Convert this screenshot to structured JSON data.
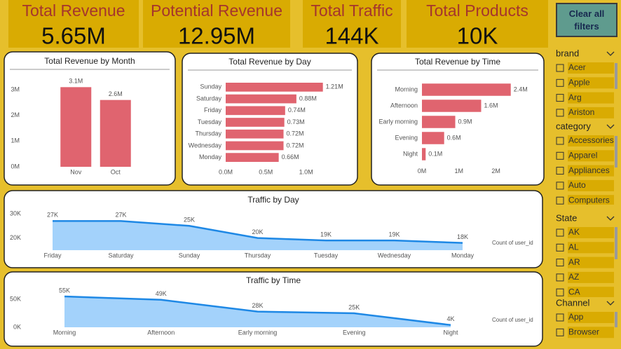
{
  "kpis": [
    {
      "title": "Total Revenue",
      "value": "5.65M"
    },
    {
      "title": "Potential Revenue",
      "value": "12.95M"
    },
    {
      "title": "Total Traffic",
      "value": "144K"
    },
    {
      "title": "Total Products",
      "value": "10K"
    }
  ],
  "button": "Clear all filters",
  "chart_data": [
    {
      "type": "bar",
      "title": "Total Revenue by Month",
      "categories": [
        "Nov",
        "Oct"
      ],
      "values": [
        3100000,
        2600000
      ],
      "value_labels": [
        "3.1M",
        "2.6M"
      ],
      "color": "#e0646f",
      "ylim": [
        0,
        3300000
      ],
      "yticks": [
        {
          "value": 0,
          "label": "0M"
        },
        {
          "value": 1000000,
          "label": "1M"
        },
        {
          "value": 2000000,
          "label": "2M"
        },
        {
          "value": 3000000,
          "label": "3M"
        }
      ]
    },
    {
      "type": "hbar",
      "title": "Total Revenue by Day",
      "categories": [
        "Sunday",
        "Saturday",
        "Friday",
        "Tuesday",
        "Thursday",
        "Wednesday",
        "Monday"
      ],
      "values": [
        1210000,
        880000,
        740000,
        730000,
        720000,
        720000,
        660000
      ],
      "value_labels": [
        "1.21M",
        "0.88M",
        "0.74M",
        "0.73M",
        "0.72M",
        "0.72M",
        "0.66M"
      ],
      "color": "#e0646f",
      "xlim": [
        0,
        1300000
      ],
      "xticks": [
        {
          "value": 0,
          "label": "0.0M"
        },
        {
          "value": 500000,
          "label": "0.5M"
        },
        {
          "value": 1000000,
          "label": "1.0M"
        }
      ]
    },
    {
      "type": "hbar",
      "title": "Total Revenue by Time",
      "categories": [
        "Morning",
        "Afternoon",
        "Early morning",
        "Evening",
        "Night"
      ],
      "values": [
        2400000,
        1600000,
        900000,
        600000,
        100000
      ],
      "value_labels": [
        "2.4M",
        "1.6M",
        "0.9M",
        "0.6M",
        "0.1M"
      ],
      "color": "#e0646f",
      "xlim": [
        0,
        2500000
      ],
      "xticks": [
        {
          "value": 0,
          "label": "0M"
        },
        {
          "value": 1000000,
          "label": "1M"
        },
        {
          "value": 2000000,
          "label": "2M"
        }
      ]
    },
    {
      "type": "area",
      "title": "Traffic by Day",
      "categories": [
        "Friday",
        "Saturday",
        "Sunday",
        "Thursday",
        "Tuesday",
        "Wednesday",
        "Monday"
      ],
      "series": [
        {
          "name": "Count of user_id",
          "color": "#1e88e5",
          "fill": "#a3d2fb",
          "values": [
            27000,
            27000,
            25000,
            20000,
            19000,
            19000,
            18000
          ],
          "value_labels": [
            "27K",
            "27K",
            "25K",
            "20K",
            "19K",
            "19K",
            "18K"
          ]
        }
      ],
      "ylim": [
        15000,
        32000
      ],
      "yticks": [
        {
          "value": 20000,
          "label": "20K"
        },
        {
          "value": 30000,
          "label": "30K"
        }
      ]
    },
    {
      "type": "area",
      "title": "Traffic by Time",
      "categories": [
        "Morning",
        "Afternoon",
        "Early morning",
        "Evening",
        "Night"
      ],
      "series": [
        {
          "name": "Count of user_id",
          "color": "#1e88e5",
          "fill": "#a3d2fb",
          "values": [
            55000,
            49000,
            28000,
            25000,
            4000
          ],
          "value_labels": [
            "55K",
            "49K",
            "28K",
            "25K",
            "4K"
          ]
        }
      ],
      "ylim": [
        0,
        60000
      ],
      "yticks": [
        {
          "value": 0,
          "label": "0K"
        },
        {
          "value": 50000,
          "label": "50K"
        }
      ]
    }
  ],
  "slicers": [
    {
      "title": "brand",
      "items": [
        "Acer",
        "Apple",
        "Arg",
        "Ariston"
      ]
    },
    {
      "title": "category",
      "items": [
        "Accessories",
        "Apparel",
        "Appliances",
        "Auto",
        "Computers"
      ]
    },
    {
      "title": "State",
      "items": [
        "AK",
        "AL",
        "AR",
        "AZ",
        "CA"
      ]
    },
    {
      "title": "Channel",
      "items": [
        "App",
        "Browser"
      ]
    }
  ]
}
